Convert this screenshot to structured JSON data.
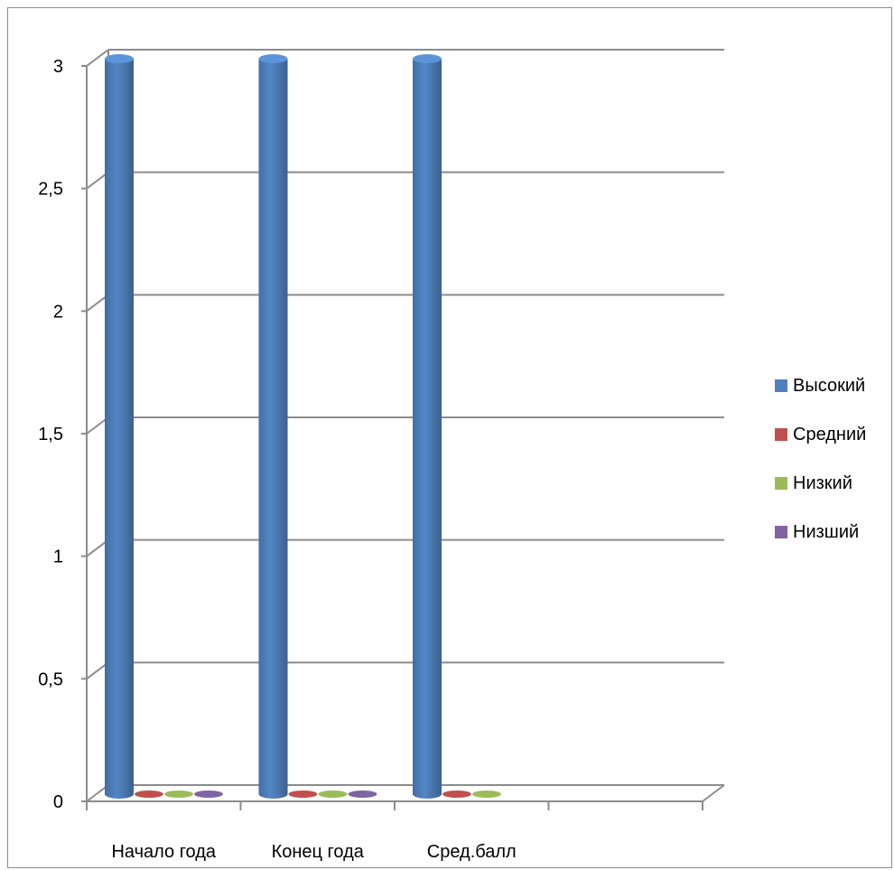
{
  "chart_data": {
    "type": "bar",
    "categories": [
      "Начало года",
      "Конец года",
      "Сред.балл",
      ""
    ],
    "series": [
      {
        "name": "Высокий",
        "values": [
          3,
          3,
          3,
          null
        ],
        "color": "#4F81BD"
      },
      {
        "name": "Средний",
        "values": [
          0,
          0,
          0,
          null
        ],
        "color": "#C0504D"
      },
      {
        "name": "Низкий",
        "values": [
          0,
          0,
          0,
          null
        ],
        "color": "#9BBB59"
      },
      {
        "name": "Низший",
        "values": [
          0,
          0,
          null,
          null
        ],
        "color": "#8064A2"
      }
    ],
    "y_ticks": [
      "0",
      "0,5",
      "1",
      "1,5",
      "2",
      "2,5",
      "3"
    ],
    "ylim": [
      0,
      3
    ],
    "grid": true,
    "legend_position": "right",
    "title": "",
    "xlabel": "",
    "ylabel": ""
  }
}
